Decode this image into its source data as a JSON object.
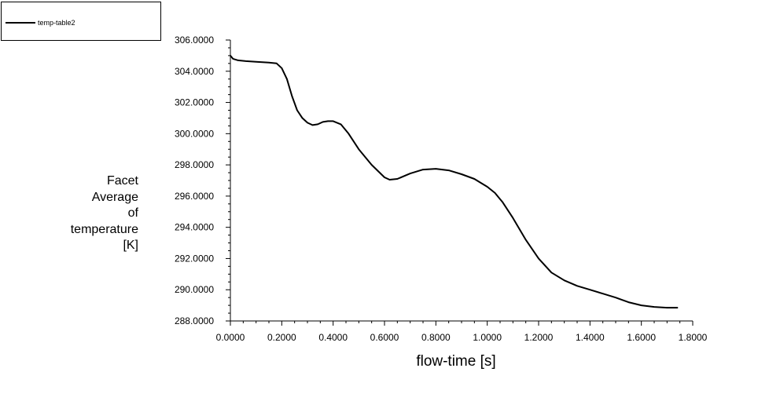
{
  "chart_data": {
    "type": "line",
    "xlabel": "flow-time [s]",
    "ylabel_lines": [
      "Facet",
      "Average",
      "of",
      "temperature",
      "[K]"
    ],
    "xlim": [
      0,
      1.8
    ],
    "ylim": [
      288,
      306
    ],
    "x_ticks": [
      "0.0000",
      "0.2000",
      "0.4000",
      "0.6000",
      "0.8000",
      "1.0000",
      "1.2000",
      "1.4000",
      "1.6000",
      "1.8000"
    ],
    "y_ticks": [
      "288.0000",
      "290.0000",
      "292.0000",
      "294.0000",
      "296.0000",
      "298.0000",
      "300.0000",
      "302.0000",
      "304.0000",
      "306.0000"
    ],
    "legend": {
      "placement": "top-left",
      "entries": [
        "temp-table2"
      ]
    },
    "grid": false,
    "series": [
      {
        "name": "temp-table2",
        "color": "#000000",
        "x": [
          0.0,
          0.01,
          0.03,
          0.06,
          0.1,
          0.15,
          0.18,
          0.2,
          0.22,
          0.24,
          0.26,
          0.28,
          0.3,
          0.32,
          0.34,
          0.36,
          0.38,
          0.4,
          0.43,
          0.46,
          0.5,
          0.55,
          0.6,
          0.62,
          0.65,
          0.7,
          0.75,
          0.8,
          0.85,
          0.9,
          0.95,
          0.98,
          1.0,
          1.03,
          1.06,
          1.1,
          1.15,
          1.2,
          1.25,
          1.3,
          1.35,
          1.4,
          1.45,
          1.5,
          1.55,
          1.6,
          1.65,
          1.7,
          1.74
        ],
        "y": [
          305.0,
          304.8,
          304.7,
          304.65,
          304.6,
          304.55,
          304.5,
          304.2,
          303.5,
          302.4,
          301.5,
          301.0,
          300.7,
          300.55,
          300.6,
          300.75,
          300.8,
          300.8,
          300.6,
          300.0,
          299.0,
          298.0,
          297.2,
          297.05,
          297.1,
          297.45,
          297.7,
          297.75,
          297.65,
          297.4,
          297.1,
          296.8,
          296.6,
          296.2,
          295.6,
          294.6,
          293.2,
          292.0,
          291.1,
          290.6,
          290.25,
          290.0,
          289.75,
          289.5,
          289.2,
          289.0,
          288.9,
          288.85,
          288.85
        ]
      }
    ]
  }
}
